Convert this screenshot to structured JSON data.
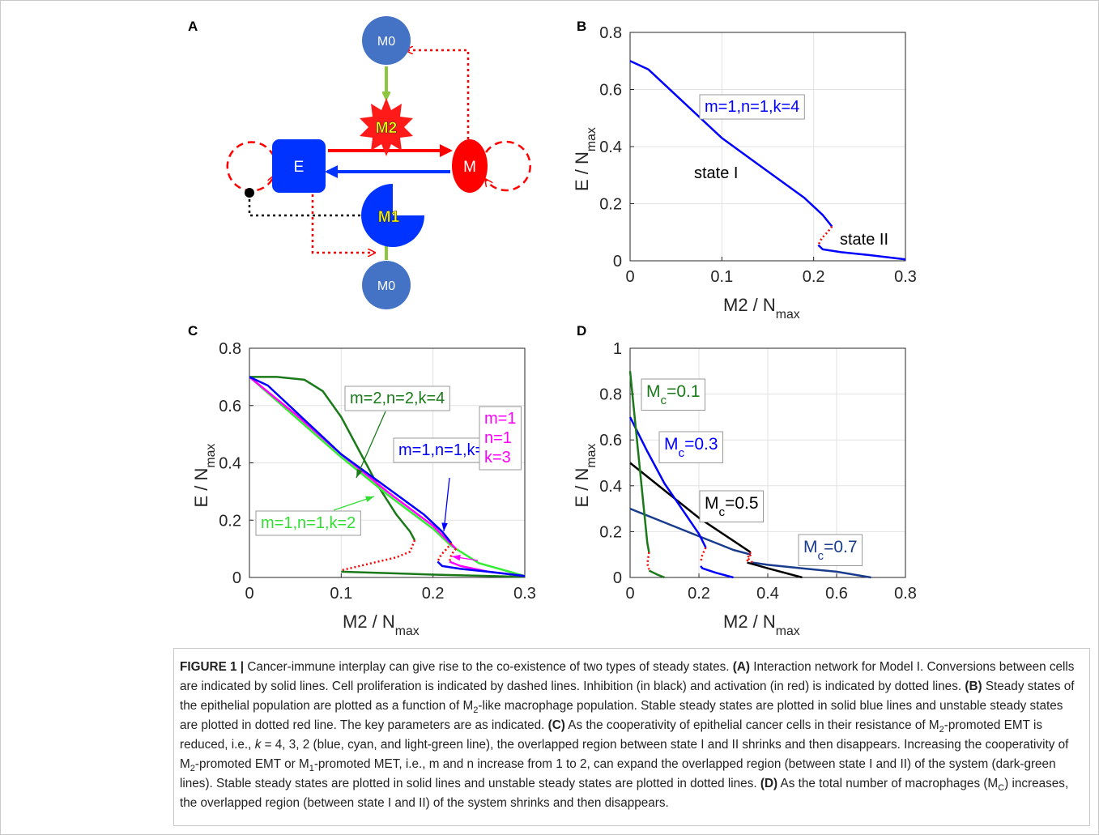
{
  "diagram": {
    "panel": "A",
    "nodes": {
      "m0_top": "M0",
      "m2": "M2",
      "e": "E",
      "m": "M",
      "m1": "M1",
      "m0_bottom": "M0"
    }
  },
  "chart_data": [
    {
      "type": "line",
      "panel": "B",
      "xlabel": "M2 / N",
      "xlabel_sub": "max",
      "ylabel": "E / N",
      "ylabel_sub": "max",
      "xlim": [
        0,
        0.3
      ],
      "ylim": [
        0,
        0.8
      ],
      "xticks": [
        0,
        0.1,
        0.2,
        0.3
      ],
      "yticks": [
        0,
        0.2,
        0.4,
        0.6,
        0.8
      ],
      "grid": true,
      "series": [
        {
          "color": "#0000ff",
          "dash": "solid",
          "x": [
            0,
            0.02,
            0.05,
            0.08,
            0.1,
            0.13,
            0.16,
            0.19,
            0.21,
            0.22
          ],
          "values": [
            0.7,
            0.67,
            0.58,
            0.49,
            0.43,
            0.36,
            0.29,
            0.22,
            0.16,
            0.12
          ]
        },
        {
          "color": "#ff0000",
          "dash": "dotted",
          "x": [
            0.22,
            0.215,
            0.209,
            0.205
          ],
          "values": [
            0.12,
            0.1,
            0.08,
            0.055
          ]
        },
        {
          "color": "#0000ff",
          "dash": "solid",
          "x": [
            0.205,
            0.21,
            0.23,
            0.26,
            0.3
          ],
          "values": [
            0.055,
            0.04,
            0.03,
            0.02,
            0.005
          ]
        }
      ],
      "annotations": [
        {
          "text": "m=1,n=1,k=4",
          "color": "#0000ff",
          "box": true
        },
        {
          "text": "state I",
          "color": "#000000",
          "box": false
        },
        {
          "text": "state II",
          "color": "#000000",
          "box": false
        }
      ]
    },
    {
      "type": "line",
      "panel": "C",
      "xlabel": "M2 / N",
      "xlabel_sub": "max",
      "ylabel": "E / N",
      "ylabel_sub": "max",
      "xlim": [
        0,
        0.3
      ],
      "ylim": [
        0,
        0.8
      ],
      "xticks": [
        0,
        0.1,
        0.2,
        0.3
      ],
      "yticks": [
        0,
        0.2,
        0.4,
        0.6,
        0.8
      ],
      "grid": true,
      "series": [
        {
          "color": "#1a7a1a",
          "dash": "solid",
          "x": [
            0,
            0.03,
            0.06,
            0.08,
            0.1,
            0.12,
            0.14,
            0.16,
            0.175,
            0.18
          ],
          "values": [
            0.7,
            0.7,
            0.69,
            0.65,
            0.56,
            0.44,
            0.32,
            0.22,
            0.16,
            0.13
          ]
        },
        {
          "color": "#ff0000",
          "dash": "dotted",
          "x": [
            0.18,
            0.175,
            0.16,
            0.14,
            0.12,
            0.1
          ],
          "values": [
            0.13,
            0.09,
            0.07,
            0.055,
            0.04,
            0.025
          ]
        },
        {
          "color": "#1a7a1a",
          "dash": "solid",
          "x": [
            0.1,
            0.2,
            0.3
          ],
          "values": [
            0.02,
            0.01,
            0.002
          ]
        },
        {
          "color": "#33ee33",
          "dash": "solid",
          "x": [
            0,
            0.05,
            0.1,
            0.15,
            0.2,
            0.22,
            0.25,
            0.3
          ],
          "values": [
            0.7,
            0.56,
            0.42,
            0.29,
            0.17,
            0.11,
            0.05,
            0.005
          ]
        },
        {
          "color": "#ff00ff",
          "dash": "solid",
          "x": [
            0,
            0.05,
            0.1,
            0.15,
            0.2,
            0.225
          ],
          "values": [
            0.7,
            0.57,
            0.43,
            0.3,
            0.18,
            0.1
          ]
        },
        {
          "color": "#ff0000",
          "dash": "dotted",
          "x": [
            0.225,
            0.22,
            0.218
          ],
          "values": [
            0.1,
            0.08,
            0.055
          ]
        },
        {
          "color": "#ff00ff",
          "dash": "solid",
          "x": [
            0.218,
            0.23,
            0.26,
            0.3
          ],
          "values": [
            0.055,
            0.04,
            0.02,
            0.005
          ]
        },
        {
          "color": "#0000ff",
          "dash": "solid",
          "x": [
            0,
            0.02,
            0.05,
            0.08,
            0.1,
            0.13,
            0.16,
            0.19,
            0.21,
            0.22
          ],
          "values": [
            0.7,
            0.67,
            0.58,
            0.49,
            0.43,
            0.36,
            0.29,
            0.22,
            0.16,
            0.12
          ]
        },
        {
          "color": "#ff0000",
          "dash": "dotted",
          "x": [
            0.22,
            0.215,
            0.209,
            0.205
          ],
          "values": [
            0.12,
            0.1,
            0.08,
            0.055
          ]
        },
        {
          "color": "#0000ff",
          "dash": "solid",
          "x": [
            0.205,
            0.21,
            0.23,
            0.26,
            0.3
          ],
          "values": [
            0.055,
            0.04,
            0.03,
            0.02,
            0.005
          ]
        }
      ],
      "annotations": [
        {
          "text": "m=2,n=2,k=4",
          "color": "#1a7a1a",
          "box": true
        },
        {
          "text": "m=1,n=1,k=4",
          "color": "#0000ff",
          "box": true
        },
        {
          "lines": [
            "m=1",
            "n=1",
            "k=3"
          ],
          "color": "#ff00ff",
          "box": true
        },
        {
          "text": "m=1,n=1,k=2",
          "color": "#33dd33",
          "box": true
        }
      ]
    },
    {
      "type": "line",
      "panel": "D",
      "xlabel": "M2 / N",
      "xlabel_sub": "max",
      "ylabel": "E / N",
      "ylabel_sub": "max",
      "xlim": [
        0,
        0.8
      ],
      "ylim": [
        0,
        1
      ],
      "xticks": [
        0,
        0.2,
        0.4,
        0.6,
        0.8
      ],
      "yticks": [
        0,
        0.2,
        0.4,
        0.6,
        0.8,
        1
      ],
      "grid": true,
      "series": [
        {
          "color": "#1a3c8c",
          "dash": "solid",
          "x": [
            0,
            0.1,
            0.2,
            0.3,
            0.35
          ],
          "values": [
            0.3,
            0.24,
            0.18,
            0.12,
            0.1
          ]
        },
        {
          "color": "#ff0000",
          "dash": "dotted",
          "x": [
            0.35,
            0.345,
            0.355
          ],
          "values": [
            0.1,
            0.08,
            0.065
          ]
        },
        {
          "color": "#1a3c8c",
          "dash": "solid",
          "x": [
            0.355,
            0.4,
            0.5,
            0.6,
            0.7
          ],
          "values": [
            0.065,
            0.055,
            0.04,
            0.025,
            0
          ]
        },
        {
          "color": "#000000",
          "dash": "solid",
          "x": [
            0,
            0.1,
            0.2,
            0.3,
            0.35
          ],
          "values": [
            0.5,
            0.38,
            0.26,
            0.16,
            0.11
          ]
        },
        {
          "color": "#ff0000",
          "dash": "dotted",
          "x": [
            0.35,
            0.342,
            0.34
          ],
          "values": [
            0.11,
            0.085,
            0.065
          ]
        },
        {
          "color": "#000000",
          "dash": "solid",
          "x": [
            0.34,
            0.4,
            0.5
          ],
          "values": [
            0.065,
            0.04,
            0
          ]
        },
        {
          "color": "#0000ff",
          "dash": "solid",
          "x": [
            0,
            0.05,
            0.1,
            0.15,
            0.2,
            0.22
          ],
          "values": [
            0.7,
            0.55,
            0.41,
            0.3,
            0.19,
            0.13
          ]
        },
        {
          "color": "#ff0000",
          "dash": "dotted",
          "x": [
            0.22,
            0.21,
            0.205
          ],
          "values": [
            0.13,
            0.1,
            0.065
          ]
        },
        {
          "color": "#0000ff",
          "dash": "solid",
          "x": [
            0.205,
            0.21,
            0.25,
            0.3
          ],
          "values": [
            0.05,
            0.04,
            0.02,
            0
          ]
        },
        {
          "color": "#1a7a1a",
          "dash": "solid",
          "x": [
            0,
            0.02,
            0.04,
            0.05,
            0.055
          ],
          "values": [
            0.9,
            0.6,
            0.3,
            0.15,
            0.11
          ]
        },
        {
          "color": "#ff0000",
          "dash": "dotted",
          "x": [
            0.055,
            0.05,
            0.055
          ],
          "values": [
            0.11,
            0.06,
            0.035
          ]
        },
        {
          "color": "#1a7a1a",
          "dash": "solid",
          "x": [
            0.055,
            0.08,
            0.1
          ],
          "values": [
            0.03,
            0.012,
            0
          ]
        }
      ],
      "annotations": [
        {
          "text": "M",
          "sub": "c",
          "suffix": "=0.1",
          "color": "#1a7a1a",
          "box": true
        },
        {
          "text": "M",
          "sub": "c",
          "suffix": "=0.3",
          "color": "#0000ff",
          "box": true
        },
        {
          "text": "M",
          "sub": "c",
          "suffix": "=0.5",
          "color": "#000000",
          "box": true
        },
        {
          "text": "M",
          "sub": "c",
          "suffix": "=0.7",
          "color": "#1a3c8c",
          "box": true
        }
      ]
    }
  ],
  "caption": [
    {
      "text": "FIGURE 1 |",
      "style": "b"
    },
    {
      "text": " Cancer-immune interplay can give rise to the co-existence of two types of steady states. ",
      "style": ""
    },
    {
      "text": "(A)",
      "style": "b"
    },
    {
      "text": " Interaction network for Model I. Conversions between cells are indicated by solid lines. Cell proliferation is indicated by dashed lines. Inhibition (in black) and activation (in red) is indicated by dotted lines. ",
      "style": ""
    },
    {
      "text": "(B)",
      "style": "b"
    },
    {
      "text": " Steady states of the epithelial population are plotted as a function of M",
      "style": ""
    },
    {
      "text": "2",
      "style": "s"
    },
    {
      "text": "-like macrophage population. Stable steady states are plotted in solid blue lines and unstable steady states are plotted in dotted red line. The key parameters are as indicated. ",
      "style": ""
    },
    {
      "text": "(C)",
      "style": "b"
    },
    {
      "text": " As the cooperativity of epithelial cancer cells in their resistance of M",
      "style": ""
    },
    {
      "text": "2",
      "style": "s"
    },
    {
      "text": "-promoted EMT is reduced, i.e., ",
      "style": ""
    },
    {
      "text": "k",
      "style": "i"
    },
    {
      "text": " = 4, 3, 2 (blue, cyan, and light-green line), the overlapped region between state I and II shrinks and then disappears. Increasing the cooperativity of M",
      "style": ""
    },
    {
      "text": "2",
      "style": "s"
    },
    {
      "text": "-promoted EMT or M",
      "style": ""
    },
    {
      "text": "1",
      "style": "s"
    },
    {
      "text": "-promoted MET, i.e., m and n increase from 1 to 2, can expand the overlapped region (between state I and II) of the system (dark-green lines). Stable steady states are plotted in solid lines and unstable steady states are plotted in dotted lines. ",
      "style": ""
    },
    {
      "text": "(D)",
      "style": "b"
    },
    {
      "text": " As the total number of macrophages (M",
      "style": ""
    },
    {
      "text": "C",
      "style": "s"
    },
    {
      "text": ") increases, the overlapped region (between state I and II) of the system shrinks and then disappears.",
      "style": ""
    }
  ]
}
